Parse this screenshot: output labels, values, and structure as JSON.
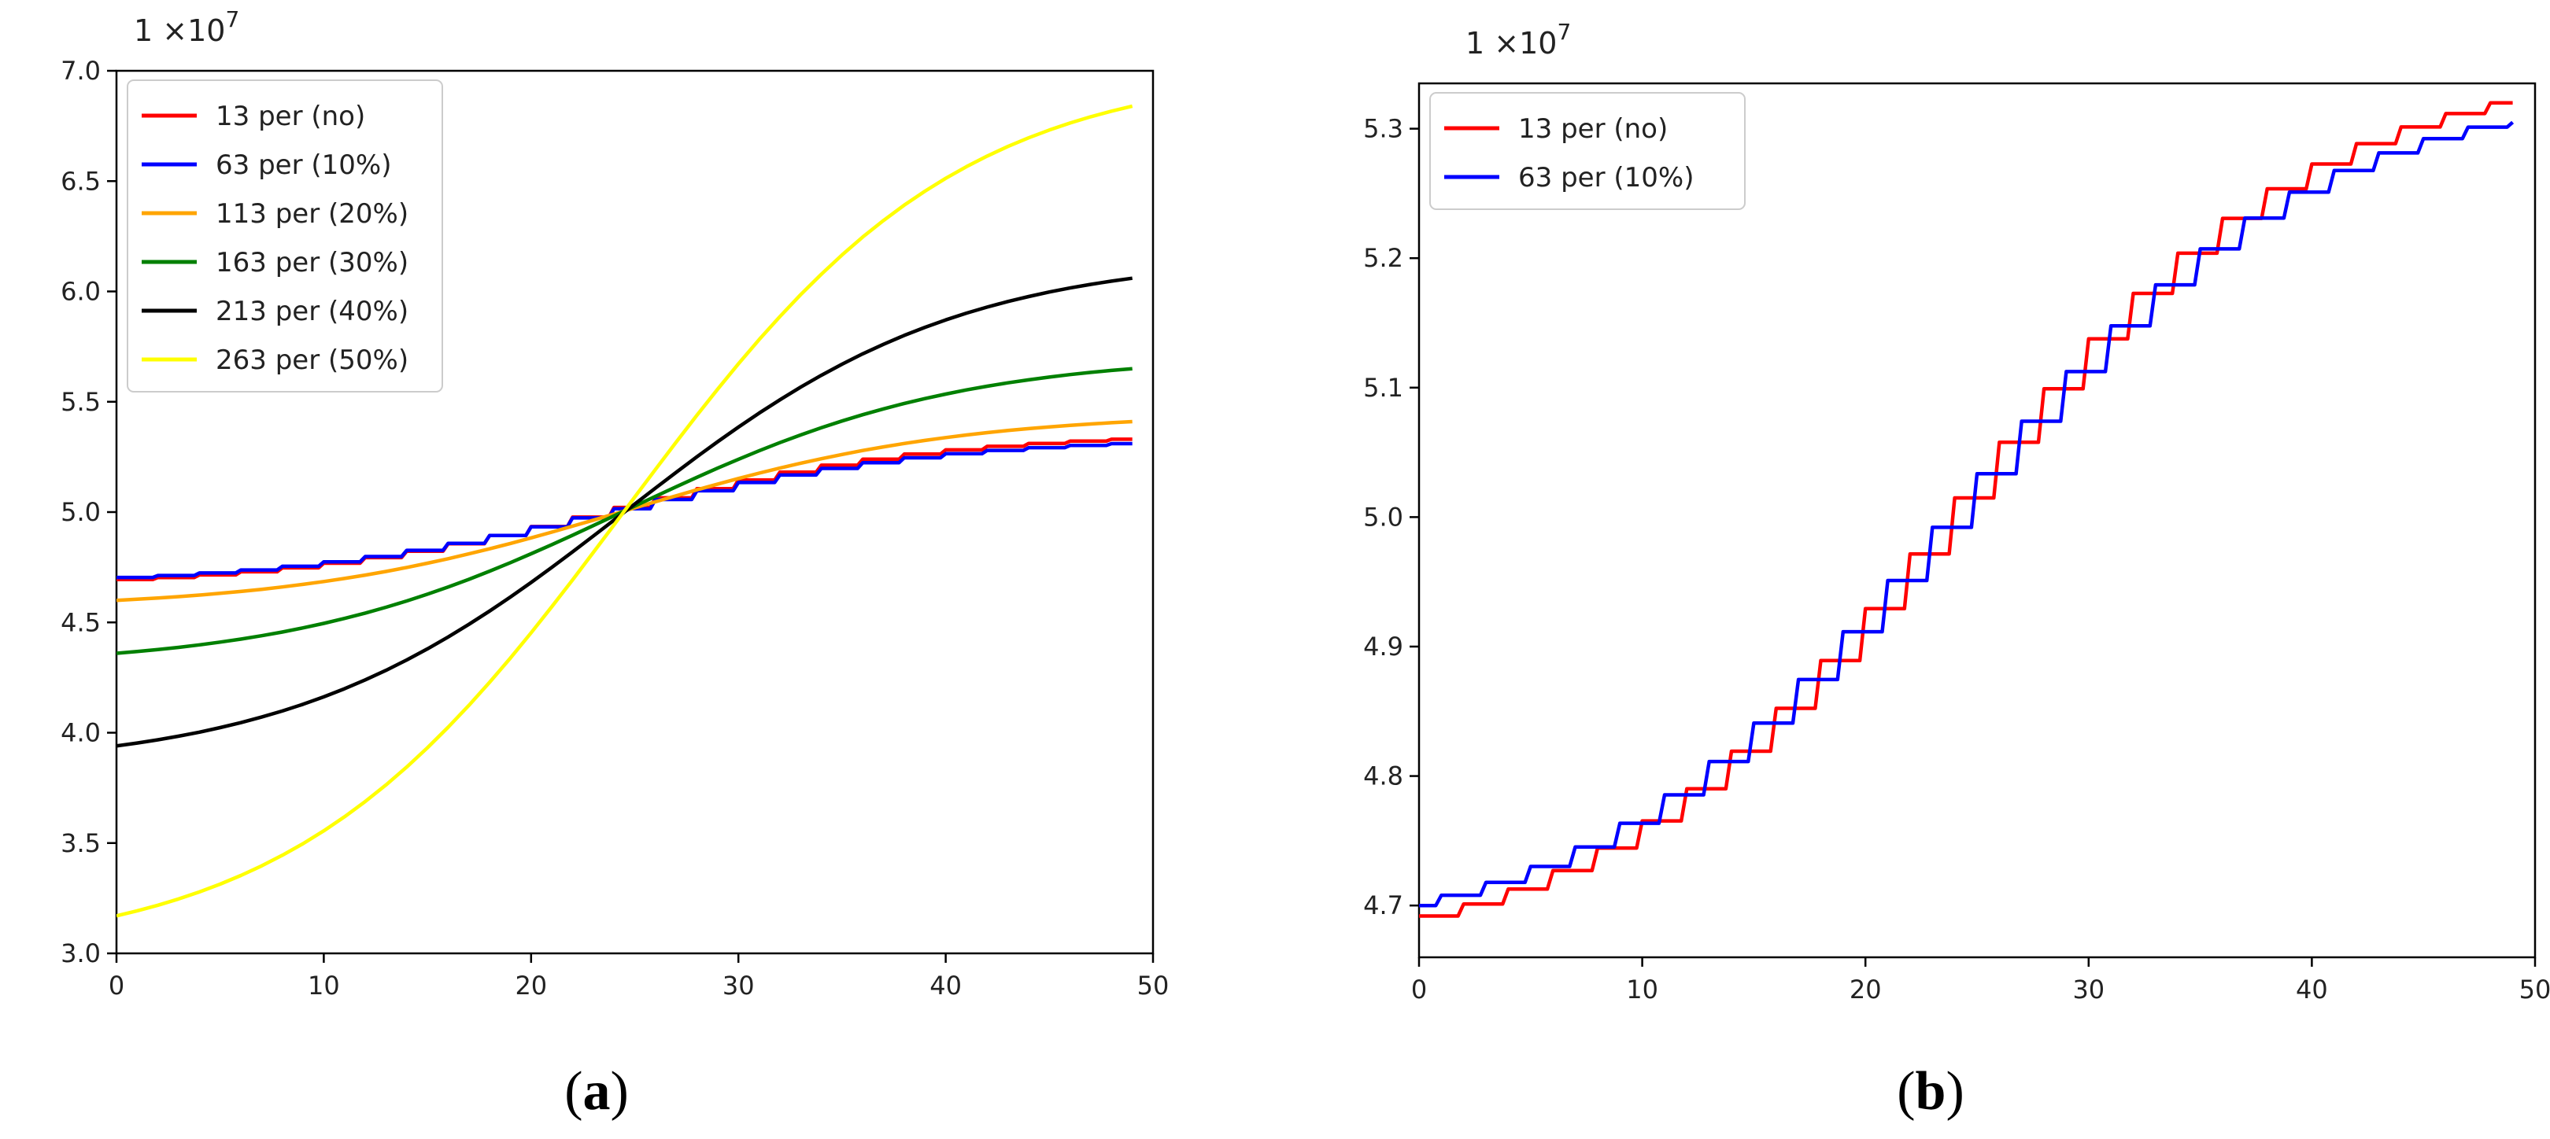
{
  "chart_data": [
    {
      "type": "line",
      "panel": "a",
      "caption": {
        "open": "(",
        "letter": "a",
        "close": ")"
      },
      "multiplier": {
        "base": "1 ×10",
        "exp": "7"
      },
      "xlim": [
        0,
        50
      ],
      "ylim": [
        3.0,
        7.0
      ],
      "xticks": [
        0,
        10,
        20,
        30,
        40,
        50
      ],
      "yticks": [
        3.0,
        3.5,
        4.0,
        4.5,
        5.0,
        5.5,
        6.0,
        6.5,
        7.0
      ],
      "legend_position": "upper-left",
      "x_range": [
        0,
        49
      ],
      "sigmoid_center": 24.5,
      "sigmoid_scale": 8,
      "series": [
        {
          "name": "13 per (no)",
          "color": "#ff0000",
          "start": 4.69,
          "end": 5.33,
          "step": 2
        },
        {
          "name": "63 per (10%)",
          "color": "#0000ff",
          "start": 4.7,
          "end": 5.31,
          "step": 2
        },
        {
          "name": "113 per (20%)",
          "color": "#ffa500",
          "start": 4.6,
          "end": 5.41,
          "step": 1
        },
        {
          "name": "163 per (30%)",
          "color": "#008000",
          "start": 4.36,
          "end": 5.65,
          "step": 1
        },
        {
          "name": "213 per (40%)",
          "color": "#000000",
          "start": 3.94,
          "end": 6.06,
          "step": 1
        },
        {
          "name": "263 per (50%)",
          "color": "#ffff00",
          "start": 3.17,
          "end": 6.84,
          "step": 1
        }
      ]
    },
    {
      "type": "line",
      "panel": "b",
      "caption": {
        "open": "(",
        "letter": "b",
        "close": ")"
      },
      "multiplier": {
        "base": "1 ×10",
        "exp": "7"
      },
      "xlim": [
        0,
        50
      ],
      "ylim": [
        4.66,
        5.335
      ],
      "xticks": [
        0,
        10,
        20,
        30,
        40,
        50
      ],
      "yticks": [
        4.7,
        4.8,
        4.9,
        5.0,
        5.1,
        5.2,
        5.3
      ],
      "legend_position": "upper-left",
      "x_range": [
        0,
        49
      ],
      "sigmoid_center": 24.5,
      "sigmoid_scale": 8,
      "series": [
        {
          "name": "13 per (no)",
          "color": "#ff0000",
          "start": 4.688,
          "end": 5.32,
          "step": 2,
          "offset": 0
        },
        {
          "name": "63 per (10%)",
          "color": "#0000ff",
          "start": 4.7,
          "end": 5.305,
          "step": 2,
          "offset": 1
        }
      ]
    }
  ]
}
